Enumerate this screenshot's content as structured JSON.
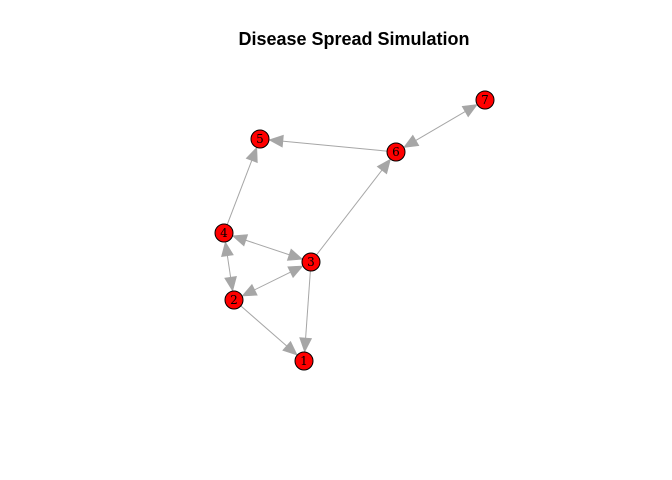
{
  "title": "Disease Spread Simulation",
  "colors": {
    "node_fill": "#ff0000",
    "node_stroke": "#000000",
    "edge": "#a6a6a6",
    "label": "#000000"
  },
  "graph": {
    "nodes": [
      {
        "id": "1",
        "label": "1"
      },
      {
        "id": "2",
        "label": "2"
      },
      {
        "id": "3",
        "label": "3"
      },
      {
        "id": "4",
        "label": "4"
      },
      {
        "id": "5",
        "label": "5"
      },
      {
        "id": "6",
        "label": "6"
      },
      {
        "id": "7",
        "label": "7"
      }
    ],
    "edges": [
      {
        "source": "2",
        "target": "1",
        "bidirectional": false
      },
      {
        "source": "3",
        "target": "1",
        "bidirectional": false
      },
      {
        "source": "2",
        "target": "3",
        "bidirectional": true
      },
      {
        "source": "4",
        "target": "2",
        "bidirectional": true
      },
      {
        "source": "4",
        "target": "3",
        "bidirectional": true
      },
      {
        "source": "4",
        "target": "5",
        "bidirectional": false
      },
      {
        "source": "3",
        "target": "6",
        "bidirectional": false
      },
      {
        "source": "6",
        "target": "5",
        "bidirectional": false
      },
      {
        "source": "6",
        "target": "7",
        "bidirectional": true
      }
    ]
  }
}
